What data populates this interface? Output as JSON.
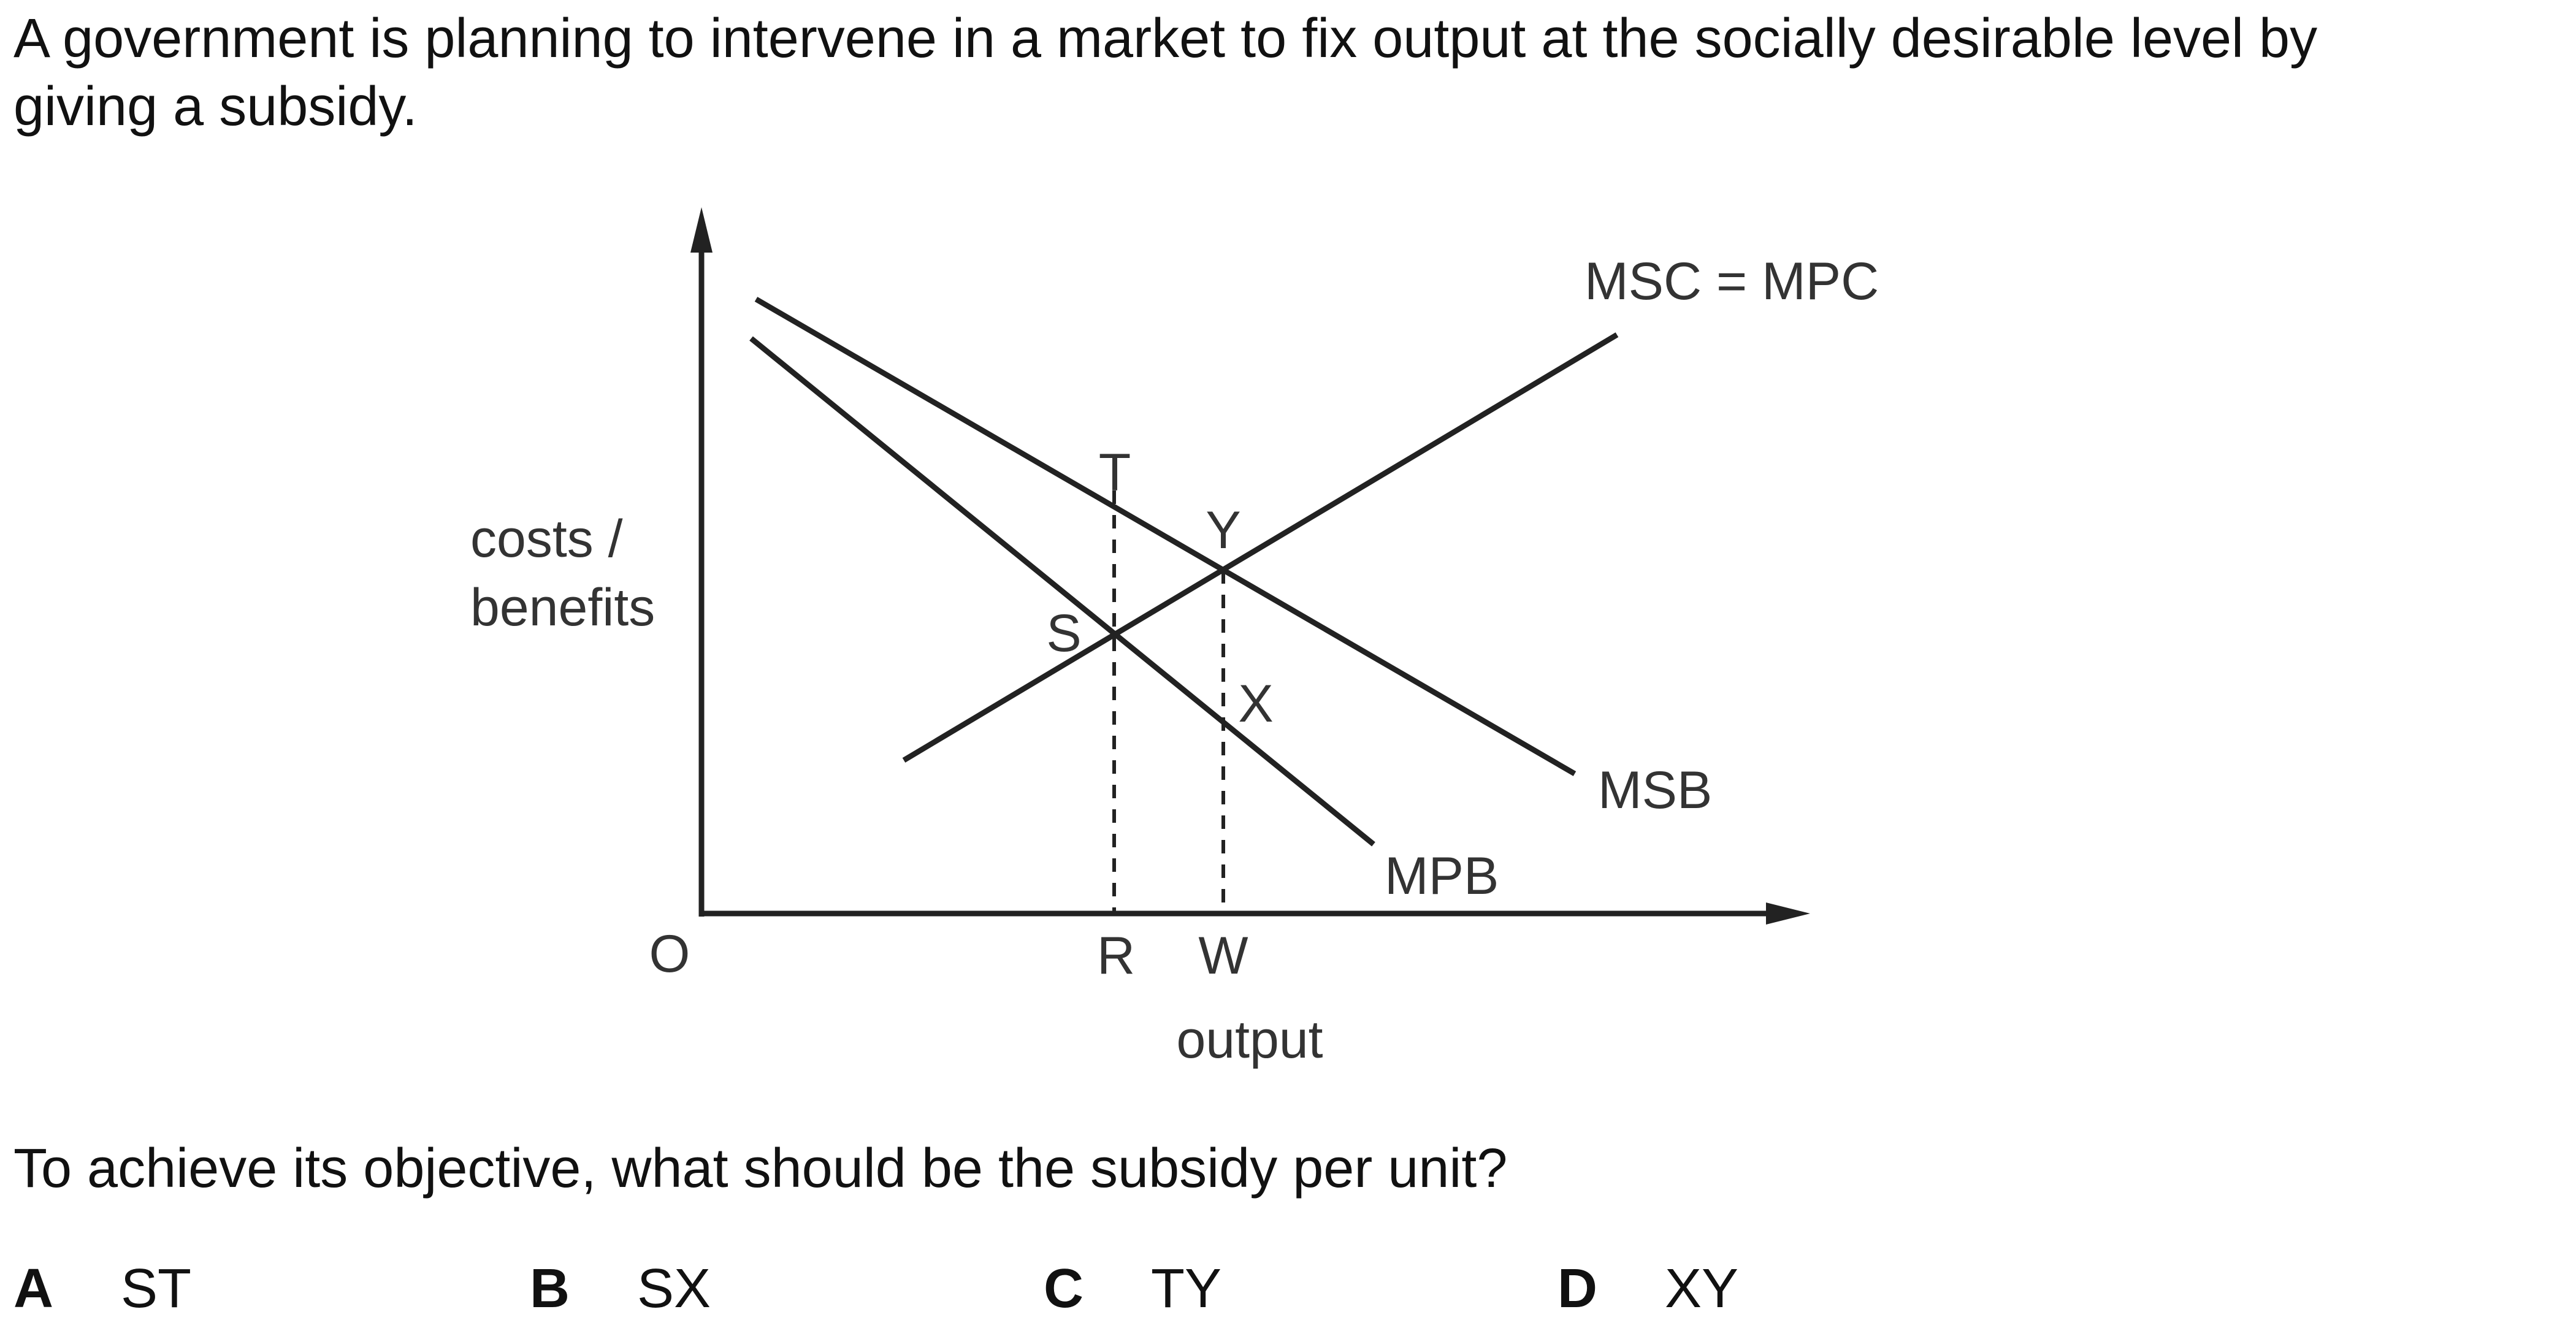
{
  "question": {
    "line1": "A government is planning to intervene in a market to fix output at the socially desirable level by",
    "line2": "giving a subsidy."
  },
  "diagram": {
    "y_axis_label_line1": "costs /",
    "y_axis_label_line2": "benefits",
    "x_axis_label": "output",
    "origin_label": "O",
    "curves": {
      "msc_mpc": "MSC = MPC",
      "msb": "MSB",
      "mpb": "MPB"
    },
    "points": {
      "t": "T",
      "y": "Y",
      "s": "S",
      "x": "X"
    },
    "x_ticks": {
      "r": "R",
      "w": "W"
    }
  },
  "prompt": "To achieve its objective, what should be the subsidy per unit?",
  "options": [
    {
      "letter": "A",
      "text": "ST"
    },
    {
      "letter": "B",
      "text": "SX"
    },
    {
      "letter": "C",
      "text": "TY"
    },
    {
      "letter": "D",
      "text": "XY"
    }
  ]
}
